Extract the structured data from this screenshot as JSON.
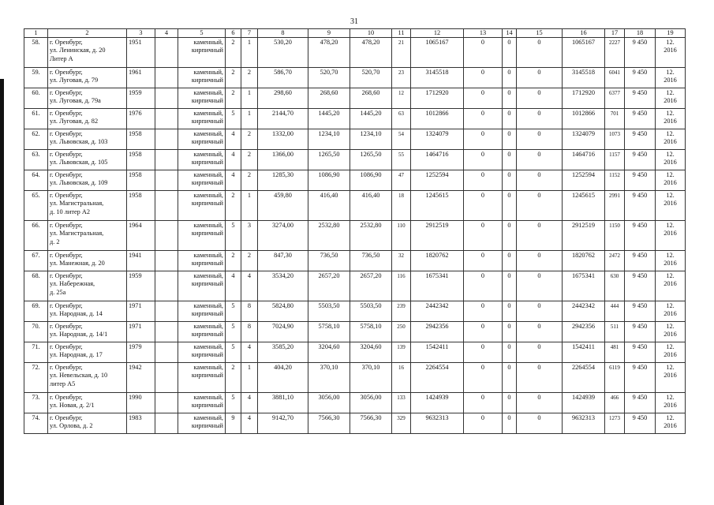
{
  "page_number": "31",
  "columns": [
    "1",
    "2",
    "3",
    "4",
    "5",
    "6",
    "7",
    "8",
    "9",
    "10",
    "11",
    "12",
    "13",
    "14",
    "15",
    "16",
    "17",
    "18",
    "19"
  ],
  "rows": [
    {
      "lines": 3,
      "cells": [
        "58.",
        "г. Оренбург,\nул. Ленинская, д. 20\nЛитер А",
        "1951",
        "",
        "каменный,\nкирпичный",
        "2",
        "1",
        "530,20",
        "478,20",
        "478,20",
        "21",
        "1065167",
        "0",
        "0",
        "0",
        "1065167",
        "2227",
        "9 450",
        "12.\n2016"
      ]
    },
    {
      "lines": 2,
      "cells": [
        "59.",
        "г. Оренбург,\nул. Луговая, д. 79",
        "1961",
        "",
        "каменный,\nкирпичный",
        "2",
        "2",
        "586,70",
        "520,70",
        "520,70",
        "23",
        "3145518",
        "0",
        "0",
        "0",
        "3145518",
        "6041",
        "9 450",
        "12.\n2016"
      ]
    },
    {
      "lines": 2,
      "cells": [
        "60.",
        "г. Оренбург,\nул. Луговая, д. 79а",
        "1959",
        "",
        "каменный,\nкирпичный",
        "2",
        "1",
        "298,60",
        "268,60",
        "268,60",
        "12",
        "1712920",
        "0",
        "0",
        "0",
        "1712920",
        "6377",
        "9 450",
        "12.\n2016"
      ]
    },
    {
      "lines": 2,
      "cells": [
        "61.",
        "г. Оренбург,\nул. Луговая, д. 82",
        "1976",
        "",
        "каменный,\nкирпичный",
        "5",
        "1",
        "2144,70",
        "1445,20",
        "1445,20",
        "63",
        "1012866",
        "0",
        "0",
        "0",
        "1012866",
        "701",
        "9 450",
        "12.\n2016"
      ]
    },
    {
      "lines": 2,
      "cells": [
        "62.",
        "г. Оренбург,\nул. Львовская, д. 103",
        "1958",
        "",
        "каменный,\nкирпичный",
        "4",
        "2",
        "1332,00",
        "1234,10",
        "1234,10",
        "54",
        "1324079",
        "0",
        "0",
        "0",
        "1324079",
        "1073",
        "9 450",
        "12.\n2016"
      ]
    },
    {
      "lines": 2,
      "cells": [
        "63.",
        "г. Оренбург,\nул. Львовская, д. 105",
        "1958",
        "",
        "каменный,\nкирпичный",
        "4",
        "2",
        "1366,00",
        "1265,50",
        "1265,50",
        "55",
        "1464716",
        "0",
        "0",
        "0",
        "1464716",
        "1157",
        "9 450",
        "12.\n2016"
      ]
    },
    {
      "lines": 2,
      "cells": [
        "64.",
        "г. Оренбург,\nул. Львовская, д. 109",
        "1958",
        "",
        "каменный,\nкирпичный",
        "4",
        "2",
        "1285,30",
        "1086,90",
        "1086,90",
        "47",
        "1252594",
        "0",
        "0",
        "0",
        "1252594",
        "1152",
        "9 450",
        "12.\n2016"
      ]
    },
    {
      "lines": 3,
      "cells": [
        "65.",
        "г. Оренбург,\nул. Магистральная,\nд. 10 литер А2",
        "1958",
        "",
        "каменный,\nкирпичный",
        "2",
        "1",
        "459,80",
        "416,40",
        "416,40",
        "18",
        "1245615",
        "0",
        "0",
        "0",
        "1245615",
        "2991",
        "9 450",
        "12.\n2016"
      ]
    },
    {
      "lines": 3,
      "cells": [
        "66.",
        "г. Оренбург,\nул. Магистральная,\nд. 2",
        "1964",
        "",
        "каменный,\nкирпичный",
        "5",
        "3",
        "3274,00",
        "2532,80",
        "2532,80",
        "110",
        "2912519",
        "0",
        "0",
        "0",
        "2912519",
        "1150",
        "9 450",
        "12.\n2016"
      ]
    },
    {
      "lines": 2,
      "cells": [
        "67.",
        "г. Оренбург,\nул. Манежная, д. 20",
        "1941",
        "",
        "каменный,\nкирпичный",
        "2",
        "2",
        "847,30",
        "736,50",
        "736,50",
        "32",
        "1820762",
        "0",
        "0",
        "0",
        "1820762",
        "2472",
        "9 450",
        "12.\n2016"
      ]
    },
    {
      "lines": 3,
      "cells": [
        "68.",
        "г. Оренбург,\nул. Набережная,\nд. 25а",
        "1959",
        "",
        "каменный,\nкирпичный",
        "4",
        "4",
        "3534,20",
        "2657,20",
        "2657,20",
        "116",
        "1675341",
        "0",
        "0",
        "0",
        "1675341",
        "630",
        "9 450",
        "12.\n2016"
      ]
    },
    {
      "lines": 2,
      "cells": [
        "69.",
        "г. Оренбург,\nул. Народная, д. 14",
        "1971",
        "",
        "каменный,\nкирпичный",
        "5",
        "8",
        "5824,80",
        "5503,50",
        "5503,50",
        "239",
        "2442342",
        "0",
        "0",
        "0",
        "2442342",
        "444",
        "9 450",
        "12.\n2016"
      ]
    },
    {
      "lines": 2,
      "cells": [
        "70.",
        "г. Оренбург,\nул. Народная, д. 14/1",
        "1971",
        "",
        "каменный,\nкирпичный",
        "5",
        "8",
        "7024,90",
        "5758,10",
        "5758,10",
        "250",
        "2942356",
        "0",
        "0",
        "0",
        "2942356",
        "511",
        "9 450",
        "12.\n2016"
      ]
    },
    {
      "lines": 2,
      "cells": [
        "71.",
        "г. Оренбург,\nул. Народная, д. 17",
        "1979",
        "",
        "каменный,\nкирпичный",
        "5",
        "4",
        "3585,20",
        "3204,60",
        "3204,60",
        "139",
        "1542411",
        "0",
        "0",
        "0",
        "1542411",
        "481",
        "9 450",
        "12.\n2016"
      ]
    },
    {
      "lines": 3,
      "cells": [
        "72.",
        "г. Оренбург,\nул. Невельская, д. 10\nлитер А5",
        "1942",
        "",
        "каменный,\nкирпичный",
        "2",
        "1",
        "404,20",
        "370,10",
        "370,10",
        "16",
        "2264554",
        "0",
        "0",
        "0",
        "2264554",
        "6119",
        "9 450",
        "12.\n2016"
      ]
    },
    {
      "lines": 2,
      "cells": [
        "73.",
        "г. Оренбург,\nул. Новая, д. 2/1",
        "1990",
        "",
        "каменный,\nкирпичный",
        "5",
        "4",
        "3881,10",
        "3056,00",
        "3056,00",
        "133",
        "1424939",
        "0",
        "0",
        "0",
        "1424939",
        "466",
        "9 450",
        "12.\n2016"
      ]
    },
    {
      "lines": 2,
      "cells": [
        "74.",
        "г. Оренбург,\nул. Орлова, д. 2",
        "1983",
        "",
        "каменный,\nкирпичный",
        "9",
        "4",
        "9142,70",
        "7566,30",
        "7566,30",
        "329",
        "9632313",
        "0",
        "0",
        "0",
        "9632313",
        "1273",
        "9 450",
        "12.\n2016"
      ]
    }
  ]
}
